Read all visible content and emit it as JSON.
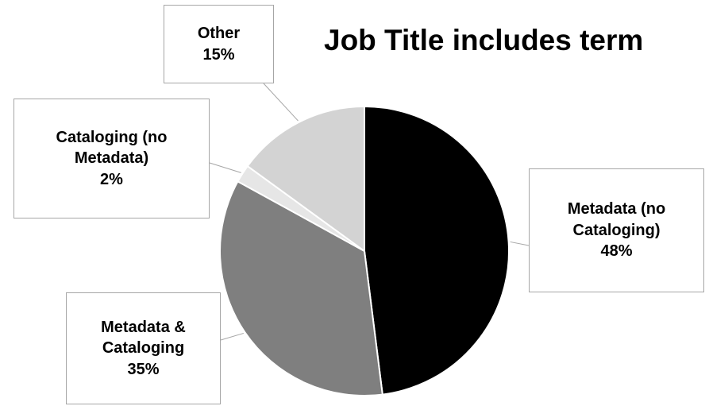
{
  "chart_data": {
    "type": "pie",
    "title": "Job Title includes term",
    "slices": [
      {
        "name": "Metadata (no Cataloging)",
        "line1": "Metadata (no",
        "line2": "Cataloging)",
        "label_pct": "48%",
        "value": 48,
        "color": "#000000"
      },
      {
        "name": "Metadata & Cataloging",
        "line1": "Metadata &",
        "line2": "Cataloging",
        "label_pct": "35%",
        "value": 35,
        "color": "#7f7f7f"
      },
      {
        "name": "Cataloging (no Metadata)",
        "line1": "Cataloging (no",
        "line2": "Metadata)",
        "label_pct": "2%",
        "value": 2,
        "color": "#e6e6e6"
      },
      {
        "name": "Other",
        "line1": "Other",
        "label_pct": "15%",
        "value": 15,
        "color": "#d3d3d3"
      }
    ]
  }
}
